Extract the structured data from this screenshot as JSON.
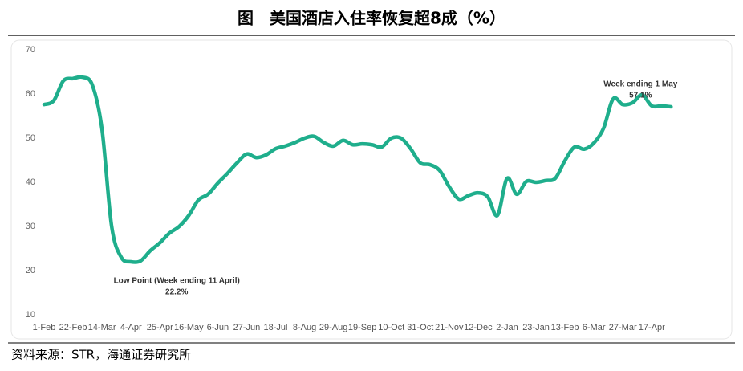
{
  "title": "图　美国酒店入住率恢复超8成（%）",
  "source": "资料来源：STR，海通证券研究所",
  "chart_data": {
    "type": "line",
    "categories": [
      "1-Feb",
      null,
      null,
      "22-Feb",
      null,
      null,
      "14-Mar",
      null,
      null,
      "4-Apr",
      null,
      null,
      "25-Apr",
      null,
      null,
      "16-May",
      null,
      null,
      "6-Jun",
      null,
      null,
      "27-Jun",
      null,
      null,
      "18-Jul",
      null,
      null,
      "8-Aug",
      null,
      null,
      "29-Aug",
      null,
      null,
      "19-Sep",
      null,
      null,
      "10-Oct",
      null,
      null,
      "31-Oct",
      null,
      null,
      "21-Nov",
      null,
      null,
      "12-Dec",
      null,
      null,
      "2-Jan",
      null,
      null,
      "23-Jan",
      null,
      null,
      "13-Feb",
      null,
      null,
      "6-Mar",
      null,
      null,
      "27-Mar",
      null,
      null,
      "17-Apr",
      null,
      null
    ],
    "values": [
      57.6,
      58.5,
      63,
      63.5,
      63.8,
      62,
      52,
      30,
      23,
      22,
      22.2,
      24.5,
      26.3,
      28.5,
      30,
      32.5,
      36,
      37.3,
      39.8,
      42,
      44.4,
      46.4,
      45.6,
      46.2,
      47.6,
      48.2,
      49,
      50,
      50.4,
      49,
      48.2,
      49.5,
      48.5,
      48.7,
      48.5,
      48,
      50,
      50,
      47.6,
      44.4,
      44,
      42.7,
      39,
      36.2,
      37,
      37.6,
      36.7,
      32.5,
      40.9,
      37.3,
      40.2,
      40,
      40.4,
      40.9,
      44.9,
      48,
      47.5,
      48.9,
      52.2,
      58.9,
      57.6,
      58,
      59.8,
      57.3,
      57.3,
      57.1
    ],
    "color": "#1fae8c",
    "ylim": [
      10,
      70
    ],
    "yticks": [
      10,
      20,
      30,
      40,
      50,
      60,
      70
    ],
    "annotations": [
      {
        "text": "Low Point (Week ending 11 April)",
        "label": "22.2%",
        "index": 10
      },
      {
        "text": "Week ending 1 May",
        "label": "57.1%",
        "index": 65
      }
    ]
  }
}
